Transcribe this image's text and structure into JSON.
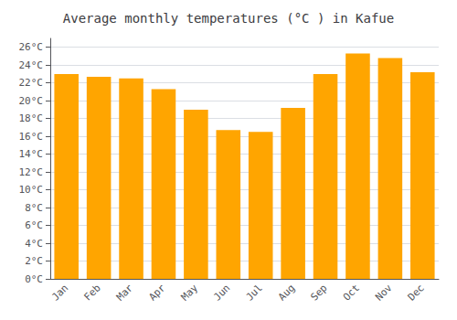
{
  "chart_data": {
    "type": "bar",
    "title": "Average monthly temperatures (°C ) in Kafue",
    "categories": [
      "Jan",
      "Feb",
      "Mar",
      "Apr",
      "May",
      "Jun",
      "Jul",
      "Aug",
      "Sep",
      "Oct",
      "Nov",
      "Dec"
    ],
    "values": [
      23.0,
      22.7,
      22.5,
      21.3,
      19.0,
      16.7,
      16.5,
      19.2,
      23.0,
      25.3,
      24.8,
      23.2
    ],
    "color": "#FFA500",
    "ylim": [
      0,
      27
    ],
    "yticks": [
      {
        "value": 0,
        "label": "0°C"
      },
      {
        "value": 2,
        "label": "2°C"
      },
      {
        "value": 4,
        "label": "4°C"
      },
      {
        "value": 6,
        "label": "6°C"
      },
      {
        "value": 8,
        "label": "8°C"
      },
      {
        "value": 10,
        "label": "10°C"
      },
      {
        "value": 12,
        "label": "12°C"
      },
      {
        "value": 14,
        "label": "14°C"
      },
      {
        "value": 16,
        "label": "16°C"
      },
      {
        "value": 18,
        "label": "18°C"
      },
      {
        "value": 20,
        "label": "20°C"
      },
      {
        "value": 22,
        "label": "22°C"
      },
      {
        "value": 24,
        "label": "24°C"
      },
      {
        "value": 26,
        "label": "26°C"
      }
    ],
    "grid": true
  }
}
